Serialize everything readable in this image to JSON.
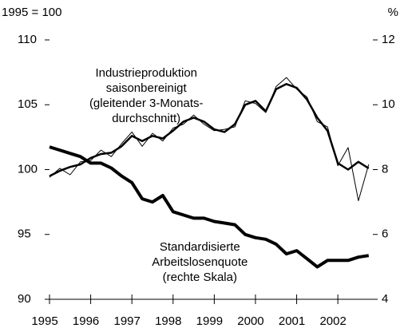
{
  "chart_data": {
    "type": "line",
    "y_unit_label": "1995 = 100",
    "y2_unit_label": "%",
    "x": [
      1995.0,
      1995.25,
      1995.5,
      1995.75,
      1996.0,
      1996.25,
      1996.5,
      1996.75,
      1997.0,
      1997.25,
      1997.5,
      1997.75,
      1998.0,
      1998.25,
      1998.5,
      1998.75,
      1999.0,
      1999.25,
      1999.5,
      1999.75,
      2000.0,
      2000.25,
      2000.5,
      2000.75,
      2001.0,
      2001.25,
      2001.5,
      2001.75,
      2002.0,
      2002.25,
      2002.5,
      2002.75
    ],
    "xlim": [
      1995,
      2002.85
    ],
    "xticks": [
      1995,
      1996,
      1997,
      1998,
      1999,
      2000,
      2001,
      2002
    ],
    "ylim": [
      90,
      110
    ],
    "yticks": [
      90,
      95,
      100,
      105,
      110
    ],
    "y2lim": [
      4,
      12
    ],
    "y2ticks": [
      4,
      6,
      8,
      10,
      12
    ],
    "series": [
      {
        "name": "Industrieproduktion saisonbereinigt",
        "color": "#000000",
        "width": 1,
        "values": [
          99.4,
          100.1,
          99.6,
          100.6,
          100.7,
          101.5,
          101.0,
          102.0,
          102.9,
          101.8,
          102.8,
          102.2,
          103.2,
          103.5,
          104.2,
          103.5,
          103.0,
          103.1,
          103.3,
          105.3,
          105.1,
          104.4,
          106.4,
          107.1,
          106.2,
          105.6,
          103.7,
          103.3,
          100.3,
          101.7,
          97.6,
          100.4
        ]
      },
      {
        "name": "Industrieproduktion (gleitender 3-Monats-Durchschnitt)",
        "color": "#000000",
        "width": 2.5,
        "values": [
          99.5,
          99.9,
          100.2,
          100.4,
          100.9,
          101.2,
          101.3,
          101.8,
          102.6,
          102.2,
          102.6,
          102.4,
          103.0,
          103.7,
          104.0,
          103.7,
          103.1,
          102.9,
          103.5,
          105.0,
          105.3,
          104.5,
          106.2,
          106.6,
          106.3,
          105.4,
          104.0,
          103.0,
          100.5,
          100.0,
          100.6,
          100.1
        ]
      },
      {
        "name": "Standardisierte Arbeitslosenquote",
        "color": "#000000",
        "width": 4,
        "axis": "y2",
        "values": [
          8.7,
          8.6,
          8.5,
          8.4,
          8.2,
          8.2,
          8.05,
          7.8,
          7.6,
          7.1,
          7.0,
          7.2,
          6.7,
          6.6,
          6.5,
          6.5,
          6.4,
          6.35,
          6.3,
          6.0,
          5.9,
          5.85,
          5.7,
          5.4,
          5.5,
          5.25,
          5.0,
          5.2,
          5.2,
          5.2,
          5.3,
          5.35
        ]
      }
    ],
    "annotations": [
      {
        "lines": [
          "Industrieproduktion",
          "saisonbereinigt",
          "(gleitender 3-Monats-",
          "durchschnitt)"
        ],
        "x": 1997.35,
        "y": 107.4
      },
      {
        "lines": [
          "Standardisierte",
          "Arbeitslosenquote",
          "(rechte Skala)"
        ],
        "x": 1998.65,
        "y": 94.0
      }
    ]
  }
}
